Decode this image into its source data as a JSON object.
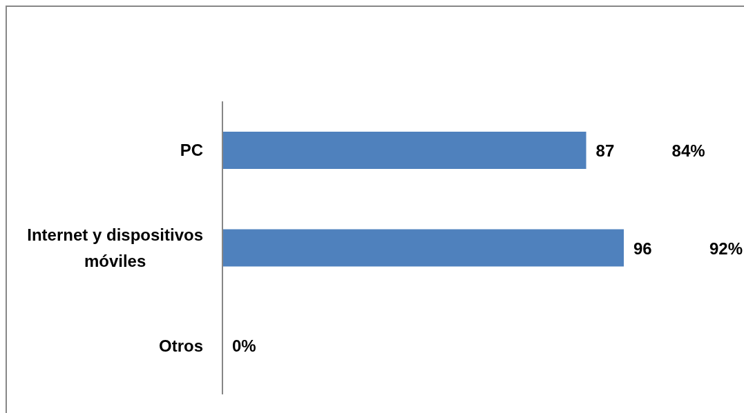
{
  "chart_data": {
    "type": "bar",
    "orientation": "horizontal",
    "categories": [
      "PC",
      "Internet y dispositivos móviles",
      "Otros"
    ],
    "values": [
      87,
      96,
      0
    ],
    "color": "#4f81bd",
    "value_labels": [
      "87",
      "96",
      null
    ],
    "tick_labels": "y",
    "annotations": [
      "84%",
      "92%",
      "0%"
    ]
  }
}
